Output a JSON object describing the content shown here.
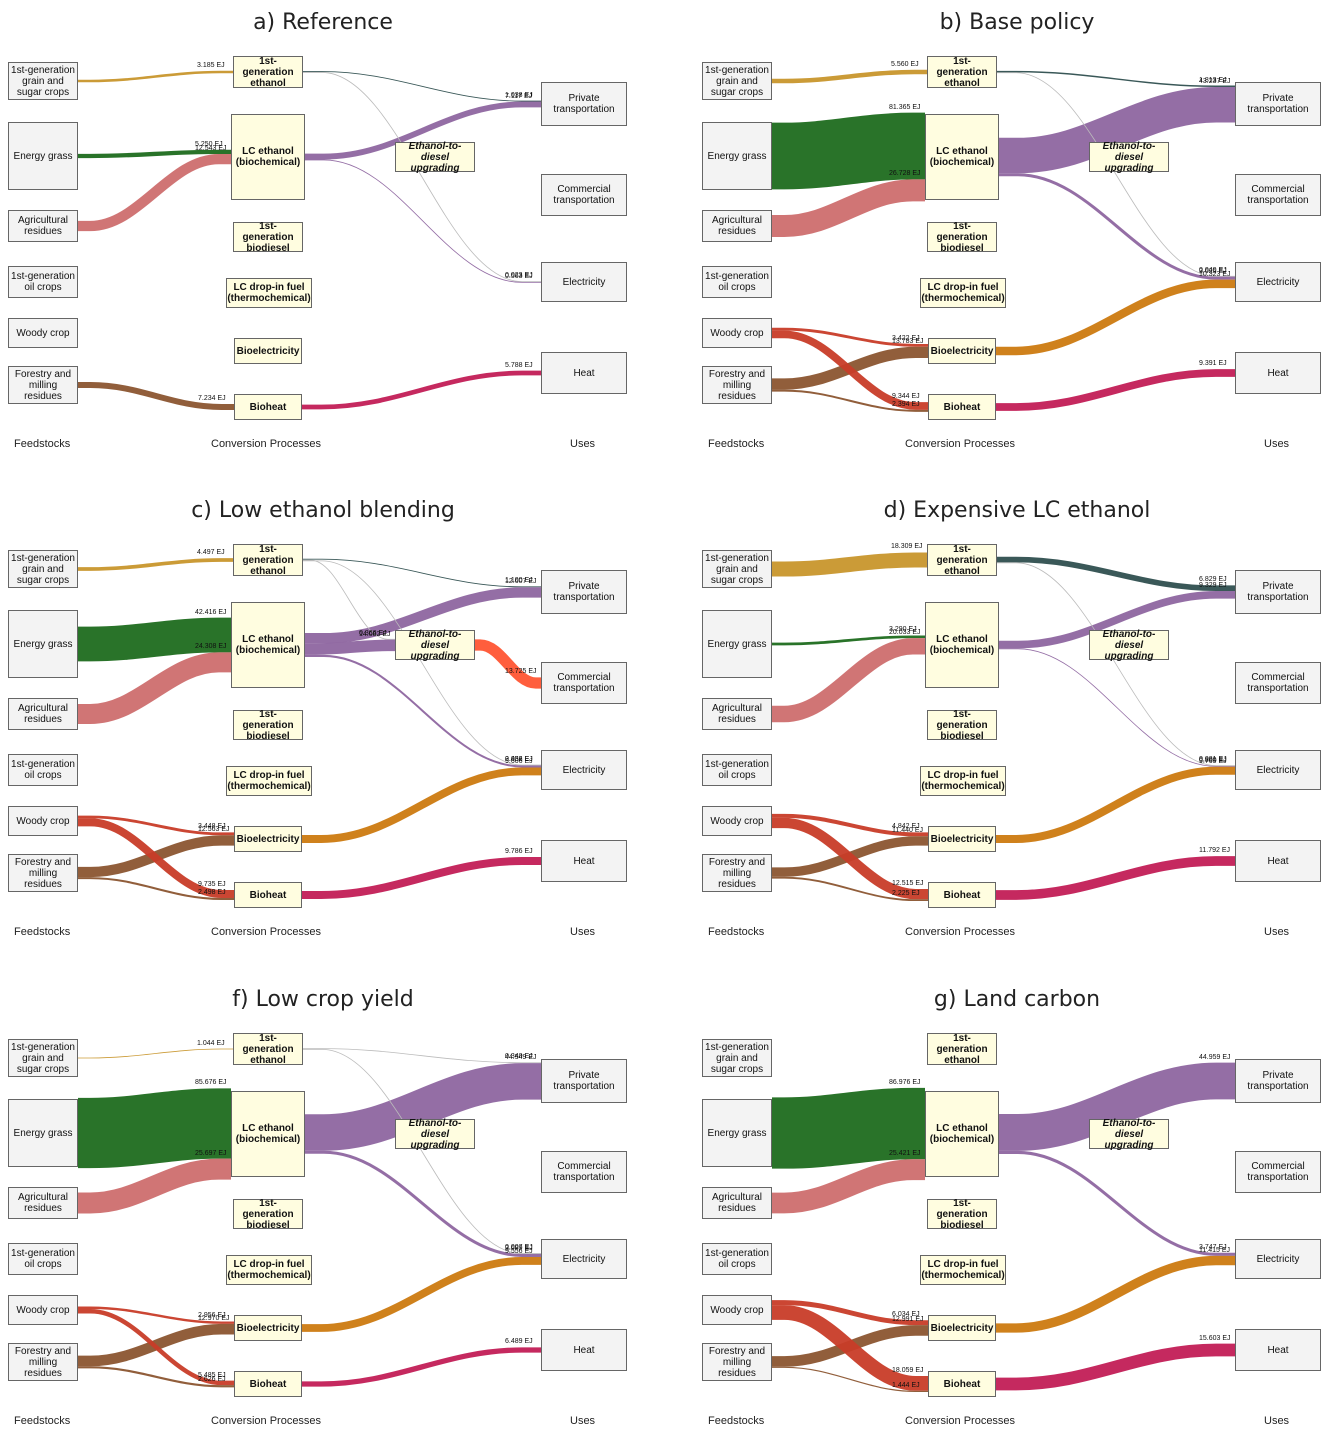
{
  "nodes": {
    "fs1": "1st-generation grain and sugar crops",
    "fs2": "Energy grass",
    "fs3": "Agricultural residues",
    "fs4": "1st-generation oil crops",
    "fs5": "Woody crop",
    "fs6": "Forestry and milling residues",
    "cp1": "1st-generation ethanol",
    "cp2": "LC ethanol (biochemical)",
    "cp3": "1st-generation biodiesel",
    "cp4": "LC drop-in fuel (thermochemical)",
    "cp5": "Bioelectricity",
    "cp6": "Bioheat",
    "cp7": "Ethanol-to-diesel upgrading",
    "u1": "Private transportation",
    "u2": "Commercial transportation",
    "u3": "Electricity",
    "u4": "Heat"
  },
  "columns": {
    "feed": "Feedstocks",
    "conv": "Conversion Processes",
    "uses": "Uses"
  },
  "colors": {
    "grain": "#c8962c",
    "grass": "#1e6b1e",
    "resid": "#cd6e6e",
    "woody": "#c83c28",
    "forest": "#8b5530",
    "ethanolUse": "#2f4f4f",
    "lcUse": "#8e66a0",
    "heat": "#c21e56",
    "elec": "#cc7a10",
    "diesel": "#ff5533",
    "thin": "#bbbbbb"
  },
  "panels": [
    {
      "title": "a) Reference",
      "flows": [
        {
          "from": "fs1",
          "to": "cp1",
          "value": 3.185,
          "label": "3.185 EJ",
          "color": "grain"
        },
        {
          "from": "fs2",
          "to": "cp2",
          "value": 5.25,
          "label": "5.250 EJ",
          "color": "grass"
        },
        {
          "from": "fs3",
          "to": "cp2",
          "value": 12.543,
          "label": "12.543 EJ",
          "color": "resid"
        },
        {
          "from": "fs6",
          "to": "cp6",
          "value": 7.234,
          "label": "7.234 EJ",
          "color": "forest"
        },
        {
          "from": "cp1",
          "to": "u1",
          "value": 1.038,
          "label": "1.038 EJ",
          "color": "ethanolUse"
        },
        {
          "from": "cp2",
          "to": "u1",
          "value": 7.117,
          "label": "7.117 EJ",
          "color": "lcUse"
        },
        {
          "from": "cp1",
          "to": "u3",
          "value": 0.023,
          "label": "0.023 EJ",
          "color": "thin"
        },
        {
          "from": "cp2",
          "to": "u3",
          "value": 0.563,
          "label": "0.563 EJ",
          "color": "lcUse"
        },
        {
          "from": "cp6",
          "to": "u4",
          "value": 5.788,
          "label": "5.788 EJ",
          "color": "heat"
        }
      ]
    },
    {
      "title": "b) Base policy",
      "flows": [
        {
          "from": "fs1",
          "to": "cp1",
          "value": 5.56,
          "label": "5.560 EJ",
          "color": "grain"
        },
        {
          "from": "fs2",
          "to": "cp2",
          "value": 81.365,
          "label": "81.365 EJ",
          "color": "grass"
        },
        {
          "from": "fs3",
          "to": "cp2",
          "value": 26.728,
          "label": "26.728 EJ",
          "color": "resid"
        },
        {
          "from": "fs5",
          "to": "cp5",
          "value": 3.422,
          "label": "3.422 EJ",
          "color": "woody"
        },
        {
          "from": "fs6",
          "to": "cp5",
          "value": 13.783,
          "label": "13.783 EJ",
          "color": "forest"
        },
        {
          "from": "fs5",
          "to": "cp6",
          "value": 9.344,
          "label": "9.344 EJ",
          "color": "woody"
        },
        {
          "from": "fs6",
          "to": "cp6",
          "value": 2.394,
          "label": "2.394 EJ",
          "color": "forest"
        },
        {
          "from": "cp1",
          "to": "u1",
          "value": 1.813,
          "label": "1.813 EJ",
          "color": "ethanolUse"
        },
        {
          "from": "cp2",
          "to": "u1",
          "value": 43.237,
          "label": "43.237 EJ",
          "color": "lcUse"
        },
        {
          "from": "cp1",
          "to": "u3",
          "value": 0.04,
          "label": "0.040 EJ",
          "color": "thin"
        },
        {
          "from": "cp2",
          "to": "u3",
          "value": 3.625,
          "label": "3.625 EJ",
          "color": "lcUse"
        },
        {
          "from": "cp5",
          "to": "u3",
          "value": 10.323,
          "label": "10.323 EJ",
          "color": "elec"
        },
        {
          "from": "cp6",
          "to": "u4",
          "value": 9.391,
          "label": "9.391 EJ",
          "color": "heat"
        }
      ]
    },
    {
      "title": "c) Low ethanol blending",
      "flows": [
        {
          "from": "fs1",
          "to": "cp1",
          "value": 4.497,
          "label": "4.497 EJ",
          "color": "grain"
        },
        {
          "from": "fs2",
          "to": "cp2",
          "value": 42.416,
          "label": "42.416 EJ",
          "color": "grass"
        },
        {
          "from": "fs3",
          "to": "cp2",
          "value": 24.308,
          "label": "24.308 EJ",
          "color": "resid"
        },
        {
          "from": "fs5",
          "to": "cp5",
          "value": 3.448,
          "label": "3.448 EJ",
          "color": "woody"
        },
        {
          "from": "fs6",
          "to": "cp5",
          "value": 12.563,
          "label": "12.563 EJ",
          "color": "forest"
        },
        {
          "from": "fs5",
          "to": "cp6",
          "value": 9.735,
          "label": "9.735 EJ",
          "color": "woody"
        },
        {
          "from": "fs6",
          "to": "cp6",
          "value": 2.498,
          "label": "2.498 EJ",
          "color": "forest"
        },
        {
          "from": "cp1",
          "to": "u1",
          "value": 1.1,
          "label": "1.100 EJ",
          "color": "ethanolUse"
        },
        {
          "from": "cp2",
          "to": "u1",
          "value": 12.607,
          "label": "12.607 EJ",
          "color": "lcUse"
        },
        {
          "from": "cp1",
          "to": "cp7",
          "value": 0.366,
          "label": "0.366 EJ",
          "color": "thin"
        },
        {
          "from": "cp2",
          "to": "cp7",
          "value": 14.082,
          "label": "14.082 EJ",
          "color": "lcUse"
        },
        {
          "from": "cp7",
          "to": "u2",
          "value": 13.725,
          "label": "13.725 EJ",
          "color": "diesel"
        },
        {
          "from": "cp1",
          "to": "u3",
          "value": 0.032,
          "label": "0.032 EJ",
          "color": "thin"
        },
        {
          "from": "cp2",
          "to": "u3",
          "value": 2.456,
          "label": "2.456 EJ",
          "color": "lcUse"
        },
        {
          "from": "cp5",
          "to": "u3",
          "value": 9.606,
          "label": "9.606 EJ",
          "color": "elec"
        },
        {
          "from": "cp6",
          "to": "u4",
          "value": 9.786,
          "label": "9.786 EJ",
          "color": "heat"
        }
      ]
    },
    {
      "title": "d) Expensive LC ethanol",
      "flows": [
        {
          "from": "fs1",
          "to": "cp1",
          "value": 18.309,
          "label": "18.309 EJ",
          "color": "grain"
        },
        {
          "from": "fs2",
          "to": "cp2",
          "value": 3.29,
          "label": "3.290 EJ",
          "color": "grass"
        },
        {
          "from": "fs3",
          "to": "cp2",
          "value": 20.033,
          "label": "20.033 EJ",
          "color": "resid"
        },
        {
          "from": "fs5",
          "to": "cp5",
          "value": 4.842,
          "label": "4.842 EJ",
          "color": "woody"
        },
        {
          "from": "fs6",
          "to": "cp5",
          "value": 11.44,
          "label": "11.440 EJ",
          "color": "forest"
        },
        {
          "from": "fs5",
          "to": "cp6",
          "value": 12.515,
          "label": "12.515 EJ",
          "color": "woody"
        },
        {
          "from": "fs6",
          "to": "cp6",
          "value": 2.225,
          "label": "2.225 EJ",
          "color": "forest"
        },
        {
          "from": "cp1",
          "to": "u1",
          "value": 6.829,
          "label": "6.829 EJ",
          "color": "ethanolUse"
        },
        {
          "from": "cp2",
          "to": "u1",
          "value": 9.329,
          "label": "9.329 EJ",
          "color": "lcUse"
        },
        {
          "from": "cp1",
          "to": "u3",
          "value": 0.081,
          "label": "0.081 EJ",
          "color": "thin"
        },
        {
          "from": "cp2",
          "to": "u3",
          "value": 0.8,
          "label": "0.800 EJ",
          "color": "lcUse"
        },
        {
          "from": "cp5",
          "to": "u3",
          "value": 9.769,
          "label": "9.769 EJ",
          "color": "elec"
        },
        {
          "from": "cp6",
          "to": "u4",
          "value": 11.792,
          "label": "11.792 EJ",
          "color": "heat"
        }
      ]
    },
    {
      "title": "f) Low crop yield",
      "flows": [
        {
          "from": "fs1",
          "to": "cp1",
          "value": 1.044,
          "label": "1.044 EJ",
          "color": "grain"
        },
        {
          "from": "fs2",
          "to": "cp2",
          "value": 85.676,
          "label": "85.676 EJ",
          "color": "grass"
        },
        {
          "from": "fs3",
          "to": "cp2",
          "value": 25.697,
          "label": "25.697 EJ",
          "color": "resid"
        },
        {
          "from": "fs5",
          "to": "cp5",
          "value": 2.956,
          "label": "2.956 EJ",
          "color": "woody"
        },
        {
          "from": "fs6",
          "to": "cp5",
          "value": 12.97,
          "label": "12.970 EJ",
          "color": "forest"
        },
        {
          "from": "fs5",
          "to": "cp6",
          "value": 5.485,
          "label": "5.485 EJ",
          "color": "woody"
        },
        {
          "from": "fs6",
          "to": "cp6",
          "value": 2.626,
          "label": "2.626 EJ",
          "color": "forest"
        },
        {
          "from": "cp1",
          "to": "u1",
          "value": 0.34,
          "label": "0.340 EJ",
          "color": "thin"
        },
        {
          "from": "cp2",
          "to": "u1",
          "value": 44.549,
          "label": "44.549 EJ",
          "color": "lcUse"
        },
        {
          "from": "cp1",
          "to": "u3",
          "value": 0.007,
          "label": "0.007 EJ",
          "color": "thin"
        },
        {
          "from": "cp2",
          "to": "u3",
          "value": 3.689,
          "label": "3.689 EJ",
          "color": "lcUse"
        },
        {
          "from": "cp5",
          "to": "u3",
          "value": 9.556,
          "label": "9.556 EJ",
          "color": "elec"
        },
        {
          "from": "cp6",
          "to": "u4",
          "value": 6.489,
          "label": "6.489 EJ",
          "color": "heat"
        }
      ]
    },
    {
      "title": "g) Land carbon",
      "flows": [
        {
          "from": "fs2",
          "to": "cp2",
          "value": 86.976,
          "label": "86.976 EJ",
          "color": "grass"
        },
        {
          "from": "fs3",
          "to": "cp2",
          "value": 25.421,
          "label": "25.421 EJ",
          "color": "resid"
        },
        {
          "from": "fs5",
          "to": "cp5",
          "value": 6.034,
          "label": "6.034 EJ",
          "color": "woody"
        },
        {
          "from": "fs6",
          "to": "cp5",
          "value": 12.991,
          "label": "12.991 EJ",
          "color": "forest"
        },
        {
          "from": "fs5",
          "to": "cp6",
          "value": 18.059,
          "label": "18.059 EJ",
          "color": "woody"
        },
        {
          "from": "fs6",
          "to": "cp6",
          "value": 1.444,
          "label": "1.444 EJ",
          "color": "forest"
        },
        {
          "from": "cp2",
          "to": "u1",
          "value": 44.959,
          "label": "44.959 EJ",
          "color": "lcUse"
        },
        {
          "from": "cp2",
          "to": "u3",
          "value": 3.747,
          "label": "3.747 EJ",
          "color": "lcUse"
        },
        {
          "from": "cp5",
          "to": "u3",
          "value": 11.415,
          "label": "11.415 EJ",
          "color": "elec"
        },
        {
          "from": "cp6",
          "to": "u4",
          "value": 15.603,
          "label": "15.603 EJ",
          "color": "heat"
        }
      ]
    }
  ]
}
